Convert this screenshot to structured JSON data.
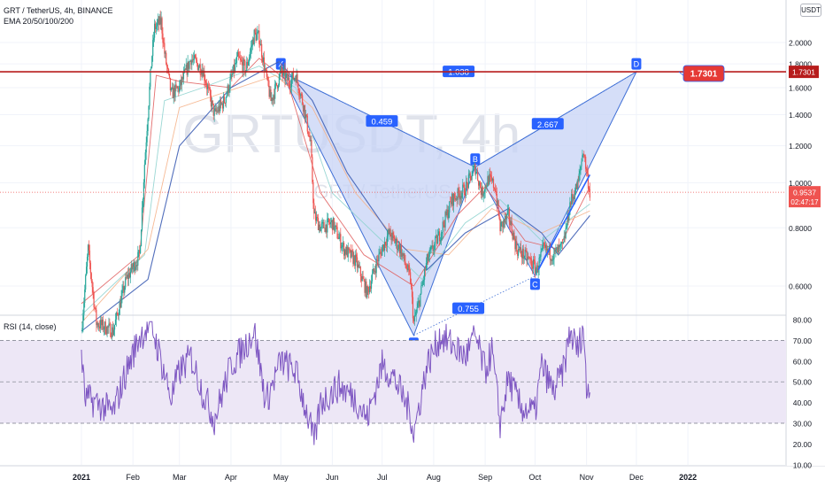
{
  "header": {
    "symbol_line": "GRT / TetherUS, 4h, BINANCE",
    "ema_line": "EMA 20/50/100/200",
    "quote_badge": "USDT"
  },
  "watermark": {
    "big": "GRTUSDT, 4h",
    "small": "GRT / TetherUS"
  },
  "colors": {
    "candle_up": "#26a69a",
    "candle_down": "#ef5350",
    "ema20": "#e05f5f",
    "ema50": "#8fd3cf",
    "ema100": "#f5b38a",
    "ema200": "#3f5fb5",
    "pattern_fill": "#c7d3f5",
    "pattern_stroke": "#3f6fd6",
    "target_line": "#b71c1c",
    "price_line": "#ef5350",
    "rsi": "#7e57c2",
    "rsi_band": "#ede7f6"
  },
  "chart_data": [
    {
      "type": "candlestick",
      "title": "GRT / TetherUS, 4h, BINANCE",
      "x_ticks": [
        "2021",
        "Feb",
        "Mar",
        "Apr",
        "May",
        "Jun",
        "Jul",
        "Aug",
        "Sep",
        "Oct",
        "Nov",
        "Dec",
        "2022"
      ],
      "y_ticks": [
        "2.0000",
        "1.8000",
        "1.6000",
        "1.4000",
        "1.2000",
        "1.0000",
        "0.8000",
        "0.6000"
      ],
      "ylim": [
        0.42,
        2.2
      ],
      "current_price": {
        "value": 0.9537,
        "label": "0.9537",
        "countdown": "02:47:17"
      },
      "target": {
        "value": 1.7301,
        "label": "1.7301",
        "axis_label": "1.7301"
      },
      "price_path": [
        [
          "2021-01-01",
          0.48
        ],
        [
          "2021-01-05",
          0.72
        ],
        [
          "2021-01-10",
          0.5
        ],
        [
          "2021-01-20",
          0.48
        ],
        [
          "2021-01-28",
          0.62
        ],
        [
          "2021-02-05",
          0.7
        ],
        [
          "2021-02-08",
          1.1
        ],
        [
          "2021-02-12",
          1.8
        ],
        [
          "2021-02-14",
          2.15
        ],
        [
          "2021-02-18",
          2.22
        ],
        [
          "2021-02-20",
          1.9
        ],
        [
          "2021-02-24",
          1.55
        ],
        [
          "2021-03-01",
          1.6
        ],
        [
          "2021-03-08",
          1.85
        ],
        [
          "2021-03-15",
          1.75
        ],
        [
          "2021-03-22",
          1.4
        ],
        [
          "2021-03-28",
          1.5
        ],
        [
          "2021-04-05",
          1.85
        ],
        [
          "2021-04-10",
          1.75
        ],
        [
          "2021-04-15",
          2.08
        ],
        [
          "2021-04-18",
          2.05
        ],
        [
          "2021-04-22",
          1.7
        ],
        [
          "2021-04-25",
          1.5
        ],
        [
          "2021-04-28",
          1.6
        ],
        [
          "2021-05-01",
          1.73
        ],
        [
          "2021-05-06",
          1.65
        ],
        [
          "2021-05-10",
          1.7
        ],
        [
          "2021-05-15",
          1.45
        ],
        [
          "2021-05-19",
          1.2
        ],
        [
          "2021-05-21",
          0.85
        ],
        [
          "2021-05-25",
          0.8
        ],
        [
          "2021-06-01",
          0.82
        ],
        [
          "2021-06-08",
          0.72
        ],
        [
          "2021-06-15",
          0.68
        ],
        [
          "2021-06-22",
          0.58
        ],
        [
          "2021-06-28",
          0.68
        ],
        [
          "2021-07-05",
          0.78
        ],
        [
          "2021-07-12",
          0.72
        ],
        [
          "2021-07-18",
          0.62
        ],
        [
          "2021-07-20",
          0.5
        ],
        [
          "2021-07-23",
          0.55
        ],
        [
          "2021-07-28",
          0.68
        ],
        [
          "2021-08-05",
          0.78
        ],
        [
          "2021-08-12",
          0.92
        ],
        [
          "2021-08-20",
          0.97
        ],
        [
          "2021-08-26",
          1.08
        ],
        [
          "2021-08-30",
          0.95
        ],
        [
          "2021-09-03",
          1.02
        ],
        [
          "2021-09-07",
          0.98
        ],
        [
          "2021-09-10",
          0.8
        ],
        [
          "2021-09-15",
          0.85
        ],
        [
          "2021-09-20",
          0.72
        ],
        [
          "2021-09-28",
          0.68
        ],
        [
          "2021-10-02",
          0.65
        ],
        [
          "2021-10-06",
          0.72
        ],
        [
          "2021-10-12",
          0.7
        ],
        [
          "2021-10-18",
          0.73
        ],
        [
          "2021-10-22",
          0.9
        ],
        [
          "2021-10-27",
          1.0
        ],
        [
          "2021-10-30",
          1.18
        ],
        [
          "2021-11-03",
          0.95
        ]
      ],
      "emas": [
        {
          "name": "EMA 20",
          "values": [
            [
              "2021-01-01",
              0.55
            ],
            [
              "2021-02-05",
              0.7
            ],
            [
              "2021-02-15",
              1.7
            ],
            [
              "2021-03-01",
              1.65
            ],
            [
              "2021-04-01",
              1.6
            ],
            [
              "2021-04-18",
              1.85
            ],
            [
              "2021-05-05",
              1.65
            ],
            [
              "2021-05-25",
              0.95
            ],
            [
              "2021-06-20",
              0.7
            ],
            [
              "2021-07-20",
              0.6
            ],
            [
              "2021-08-15",
              0.85
            ],
            [
              "2021-09-01",
              0.98
            ],
            [
              "2021-09-25",
              0.75
            ],
            [
              "2021-10-15",
              0.72
            ],
            [
              "2021-11-03",
              0.98
            ]
          ]
        },
        {
          "name": "EMA 50",
          "values": [
            [
              "2021-01-01",
              0.52
            ],
            [
              "2021-02-08",
              0.7
            ],
            [
              "2021-02-20",
              1.5
            ],
            [
              "2021-03-15",
              1.6
            ],
            [
              "2021-04-18",
              1.78
            ],
            [
              "2021-05-10",
              1.6
            ],
            [
              "2021-06-01",
              0.95
            ],
            [
              "2021-07-01",
              0.75
            ],
            [
              "2021-07-25",
              0.62
            ],
            [
              "2021-08-20",
              0.82
            ],
            [
              "2021-09-10",
              0.92
            ],
            [
              "2021-10-05",
              0.75
            ],
            [
              "2021-11-03",
              0.9
            ]
          ]
        },
        {
          "name": "EMA 100",
          "values": [
            [
              "2021-01-01",
              0.5
            ],
            [
              "2021-02-10",
              0.72
            ],
            [
              "2021-03-01",
              1.45
            ],
            [
              "2021-04-01",
              1.58
            ],
            [
              "2021-04-28",
              1.7
            ],
            [
              "2021-05-20",
              1.45
            ],
            [
              "2021-06-15",
              0.95
            ],
            [
              "2021-07-15",
              0.72
            ],
            [
              "2021-08-10",
              0.7
            ],
            [
              "2021-09-05",
              0.88
            ],
            [
              "2021-10-05",
              0.78
            ],
            [
              "2021-11-03",
              0.87
            ]
          ]
        },
        {
          "name": "EMA 200",
          "values": [
            [
              "2021-01-01",
              0.48
            ],
            [
              "2021-02-10",
              0.62
            ],
            [
              "2021-03-01",
              1.2
            ],
            [
              "2021-04-01",
              1.6
            ],
            [
              "2021-04-30",
              1.82
            ],
            [
              "2021-05-20",
              1.5
            ],
            [
              "2021-06-10",
              1.05
            ],
            [
              "2021-07-05",
              0.78
            ],
            [
              "2021-07-28",
              0.65
            ],
            [
              "2021-08-20",
              0.78
            ],
            [
              "2021-09-15",
              0.88
            ],
            [
              "2021-10-05",
              0.78
            ],
            [
              "2021-10-15",
              0.7
            ],
            [
              "2021-11-03",
              0.85
            ]
          ]
        }
      ],
      "pattern": {
        "points": [
          {
            "label": "X",
            "date": "2021-05-01",
            "price": 1.73
          },
          {
            "label": "A",
            "date": "2021-07-20",
            "price": 0.47
          },
          {
            "label": "B",
            "date": "2021-08-26",
            "price": 1.08
          },
          {
            "label": "C",
            "date": "2021-10-01",
            "price": 0.63
          },
          {
            "label": "D",
            "date": "2021-12-01",
            "price": 1.7301
          }
        ],
        "ratios": [
          "0.459",
          "0.755",
          "2.667",
          "1.038"
        ]
      },
      "trend_line": [
        [
          "2021-10-03",
          0.65
        ],
        [
          "2021-11-03",
          1.04
        ]
      ]
    },
    {
      "type": "line",
      "title": "RSI (14, close)",
      "y_ticks": [
        "80.00",
        "70.00",
        "60.00",
        "50.00",
        "40.00",
        "30.00",
        "20.00",
        "10.00"
      ],
      "ylim": [
        8,
        82
      ],
      "bands": [
        30,
        50,
        70
      ],
      "series": [
        {
          "name": "RSI (14, close)",
          "values": [
            [
              "2021-01-01",
              65
            ],
            [
              "2021-01-03",
              42
            ],
            [
              "2021-01-10",
              40
            ],
            [
              "2021-01-20",
              35
            ],
            [
              "2021-01-28",
              55
            ],
            [
              "2021-02-05",
              72
            ],
            [
              "2021-02-12",
              78
            ],
            [
              "2021-02-18",
              60
            ],
            [
              "2021-02-24",
              42
            ],
            [
              "2021-03-01",
              55
            ],
            [
              "2021-03-08",
              62
            ],
            [
              "2021-03-15",
              45
            ],
            [
              "2021-03-22",
              32
            ],
            [
              "2021-04-01",
              58
            ],
            [
              "2021-04-10",
              68
            ],
            [
              "2021-04-15",
              75
            ],
            [
              "2021-04-22",
              40
            ],
            [
              "2021-05-01",
              60
            ],
            [
              "2021-05-10",
              55
            ],
            [
              "2021-05-19",
              28
            ],
            [
              "2021-05-21",
              20
            ],
            [
              "2021-05-25",
              40
            ],
            [
              "2021-06-05",
              48
            ],
            [
              "2021-06-15",
              42
            ],
            [
              "2021-06-22",
              32
            ],
            [
              "2021-07-01",
              58
            ],
            [
              "2021-07-08",
              52
            ],
            [
              "2021-07-18",
              35
            ],
            [
              "2021-07-20",
              25
            ],
            [
              "2021-07-28",
              58
            ],
            [
              "2021-08-05",
              72
            ],
            [
              "2021-08-12",
              68
            ],
            [
              "2021-08-20",
              62
            ],
            [
              "2021-08-26",
              72
            ],
            [
              "2021-09-01",
              55
            ],
            [
              "2021-09-05",
              65
            ],
            [
              "2021-09-10",
              30
            ],
            [
              "2021-09-15",
              52
            ],
            [
              "2021-09-22",
              38
            ],
            [
              "2021-10-01",
              35
            ],
            [
              "2021-10-05",
              58
            ],
            [
              "2021-10-12",
              45
            ],
            [
              "2021-10-18",
              55
            ],
            [
              "2021-10-22",
              74
            ],
            [
              "2021-10-27",
              65
            ],
            [
              "2021-10-30",
              78
            ],
            [
              "2021-11-01",
              45
            ],
            [
              "2021-11-03",
              50
            ]
          ]
        }
      ]
    }
  ]
}
